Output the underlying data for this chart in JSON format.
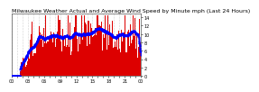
{
  "title": "Milwaukee Weather Actual and Average Wind Speed by Minute mph (Last 24 Hours)",
  "ylabel": "",
  "xlabel": "",
  "bg_color": "#ffffff",
  "plot_bg_color": "#ffffff",
  "bar_color": "#dd0000",
  "avg_color": "#0000ff",
  "grid_color": "#aaaaaa",
  "yticks": [
    0,
    2,
    4,
    6,
    8,
    10,
    12,
    14
  ],
  "ylim": [
    0,
    15
  ],
  "n_points": 1440,
  "title_fontsize": 4.5,
  "tick_fontsize": 3.5
}
